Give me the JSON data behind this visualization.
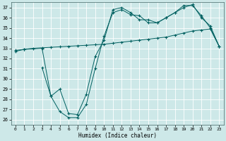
{
  "xlabel": "Humidex (Indice chaleur)",
  "xlim": [
    -0.5,
    23.5
  ],
  "ylim": [
    25.5,
    37.5
  ],
  "yticks": [
    26,
    27,
    28,
    29,
    30,
    31,
    32,
    33,
    34,
    35,
    36,
    37
  ],
  "xticks": [
    0,
    1,
    2,
    3,
    4,
    5,
    6,
    7,
    8,
    9,
    10,
    11,
    12,
    13,
    14,
    15,
    16,
    17,
    18,
    19,
    20,
    21,
    22,
    23
  ],
  "bg_color": "#cde8e8",
  "grid_color": "#b0d0d0",
  "line_color": "#006060",
  "line1_x": [
    0,
    1,
    2,
    3,
    4,
    5,
    6,
    7,
    8,
    9,
    10,
    11,
    12,
    13,
    14,
    15,
    16,
    17,
    18,
    19,
    20,
    21,
    22,
    23
  ],
  "line1_y": [
    32.8,
    32.9,
    33.0,
    33.05,
    33.1,
    33.15,
    33.2,
    33.25,
    33.3,
    33.35,
    33.4,
    33.5,
    33.6,
    33.7,
    33.8,
    33.9,
    34.0,
    34.1,
    34.3,
    34.5,
    34.7,
    34.8,
    34.9,
    33.2
  ],
  "line2_x": [
    0,
    1,
    3,
    4,
    5,
    6,
    7,
    8,
    9,
    10,
    11,
    12,
    13,
    14,
    15,
    16,
    17,
    18,
    19,
    20,
    21,
    22,
    23
  ],
  "line2_y": [
    32.7,
    32.9,
    33.0,
    28.3,
    26.8,
    26.2,
    26.2,
    27.5,
    31.0,
    34.2,
    36.5,
    36.8,
    36.3,
    36.2,
    35.5,
    35.5,
    36.0,
    36.5,
    37.2,
    37.2,
    36.2,
    35.0,
    33.2
  ],
  "line3_x": [
    3,
    4,
    5,
    6,
    7,
    8,
    9,
    10,
    11,
    12,
    13,
    14,
    15,
    16,
    17,
    18,
    19,
    20,
    21,
    22,
    23
  ],
  "line3_y": [
    31.1,
    28.3,
    29.0,
    26.6,
    26.5,
    28.5,
    32.2,
    33.8,
    36.8,
    37.0,
    36.5,
    35.8,
    35.8,
    35.5,
    36.0,
    36.5,
    37.0,
    37.3,
    36.0,
    35.2,
    33.2
  ]
}
